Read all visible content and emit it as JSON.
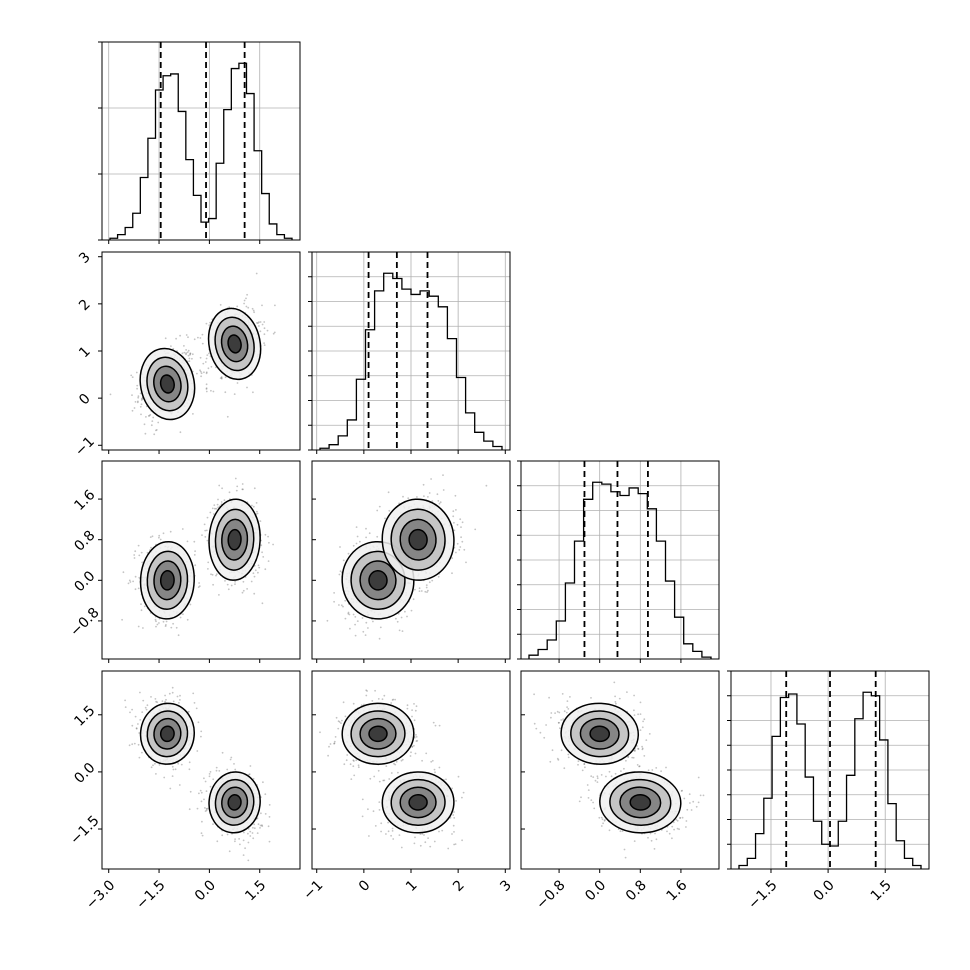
{
  "chart_data": {
    "type": "corner",
    "dimensions": 4,
    "grid": true,
    "axis_ranges": [
      [
        -3.2,
        2.7
      ],
      [
        -1.1,
        3.1
      ],
      [
        -1.55,
        2.35
      ],
      [
        -2.55,
        2.65
      ]
    ],
    "tick_values": [
      [
        -3.0,
        -1.5,
        0.0,
        1.5
      ],
      [
        -1,
        0,
        1,
        2,
        3
      ],
      [
        -0.8,
        0.0,
        0.8,
        1.6
      ],
      [
        -1.5,
        0.0,
        1.5
      ]
    ],
    "x_tick_labels": [
      [
        "−3.0",
        "−1.5",
        "0.0",
        "1.5"
      ],
      [
        "−1",
        "0",
        "1",
        "2",
        "3"
      ],
      [
        "−0.8",
        "0.0",
        "0.8",
        "1.6"
      ],
      [
        "−1.5",
        "0.0",
        "1.5"
      ]
    ],
    "y_tick_labels": [
      [],
      [
        "−1",
        "0",
        "1",
        "2",
        "3"
      ],
      [
        "−0.8",
        "0.0",
        "0.8",
        "1.6"
      ],
      [
        "−1.5",
        "0.0",
        "1.5"
      ]
    ],
    "quantiles": [
      [
        -1.45,
        -0.1,
        1.05
      ],
      [
        0.1,
        0.7,
        1.35
      ],
      [
        -0.3,
        0.35,
        0.95
      ],
      [
        -1.1,
        0.05,
        1.25
      ]
    ],
    "histograms": [
      [
        0.01,
        0.03,
        0.07,
        0.15,
        0.35,
        0.57,
        0.84,
        0.92,
        0.93,
        0.72,
        0.45,
        0.25,
        0.1,
        0.12,
        0.43,
        0.73,
        0.96,
        0.99,
        0.82,
        0.5,
        0.26,
        0.09,
        0.03,
        0.01
      ],
      [
        0.01,
        0.03,
        0.08,
        0.17,
        0.4,
        0.68,
        0.9,
        1.0,
        0.97,
        0.91,
        0.88,
        0.9,
        0.87,
        0.81,
        0.63,
        0.41,
        0.21,
        0.1,
        0.05,
        0.02
      ],
      [
        0.02,
        0.05,
        0.1,
        0.2,
        0.4,
        0.62,
        0.84,
        0.93,
        0.92,
        0.88,
        0.86,
        0.9,
        0.87,
        0.79,
        0.62,
        0.41,
        0.22,
        0.08,
        0.04,
        0.01
      ],
      [
        0.02,
        0.06,
        0.2,
        0.4,
        0.75,
        0.97,
        0.99,
        0.82,
        0.52,
        0.27,
        0.14,
        0.13,
        0.27,
        0.53,
        0.85,
        1.0,
        0.98,
        0.73,
        0.37,
        0.16,
        0.06,
        0.02
      ]
    ],
    "components": [
      {
        "mean": [
          -1.25,
          0.3,
          0.0,
          1.0
        ],
        "sd": [
          0.42,
          0.4,
          0.4,
          0.42
        ]
      },
      {
        "mean": [
          0.75,
          1.15,
          0.8,
          -0.8
        ],
        "sd": [
          0.4,
          0.4,
          0.42,
          0.42
        ]
      }
    ],
    "pair_correlation": {
      "1-0": 0.25,
      "2-0": -0.05,
      "2-1": 0.1,
      "3-0": -0.15,
      "3-1": 0.05,
      "3-2": -0.1
    },
    "colors": {
      "line": "#000000",
      "grid": "#b0b0b0",
      "points": "#555555"
    }
  }
}
